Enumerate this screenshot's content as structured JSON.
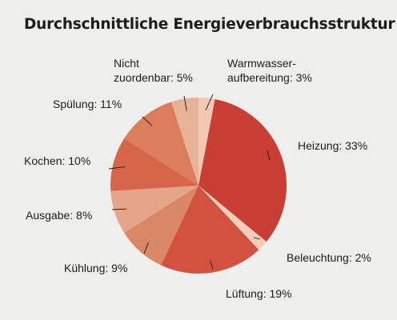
{
  "chart_data": {
    "type": "pie",
    "title": "Durchschnittliche Energieverbrauchsstruktur",
    "slices": [
      {
        "label": [
          "Warmwasser-",
          "aufbereitung: 3%"
        ],
        "value": 3,
        "color": "#f0c8b4"
      },
      {
        "label": [
          "Heizung: 33%"
        ],
        "value": 33,
        "color": "#c93e34"
      },
      {
        "label": [
          "Beleuchtung: 2%"
        ],
        "value": 2,
        "color": "#f2cdb9"
      },
      {
        "label": [
          "Lüftung: 19%"
        ],
        "value": 19,
        "color": "#d2523f"
      },
      {
        "label": [
          "Kühlung: 9%"
        ],
        "value": 9,
        "color": "#d98766"
      },
      {
        "label": [
          "Ausgabe: 8%"
        ],
        "value": 8,
        "color": "#e5a58a"
      },
      {
        "label": [
          "Kochen: 10%"
        ],
        "value": 10,
        "color": "#d6654a"
      },
      {
        "label": [
          "Spülung: 11%"
        ],
        "value": 11,
        "color": "#dc7e5e"
      },
      {
        "label": [
          "Nicht",
          "zuordenbar: 5%"
        ],
        "value": 5,
        "color": "#e8b297"
      }
    ]
  }
}
